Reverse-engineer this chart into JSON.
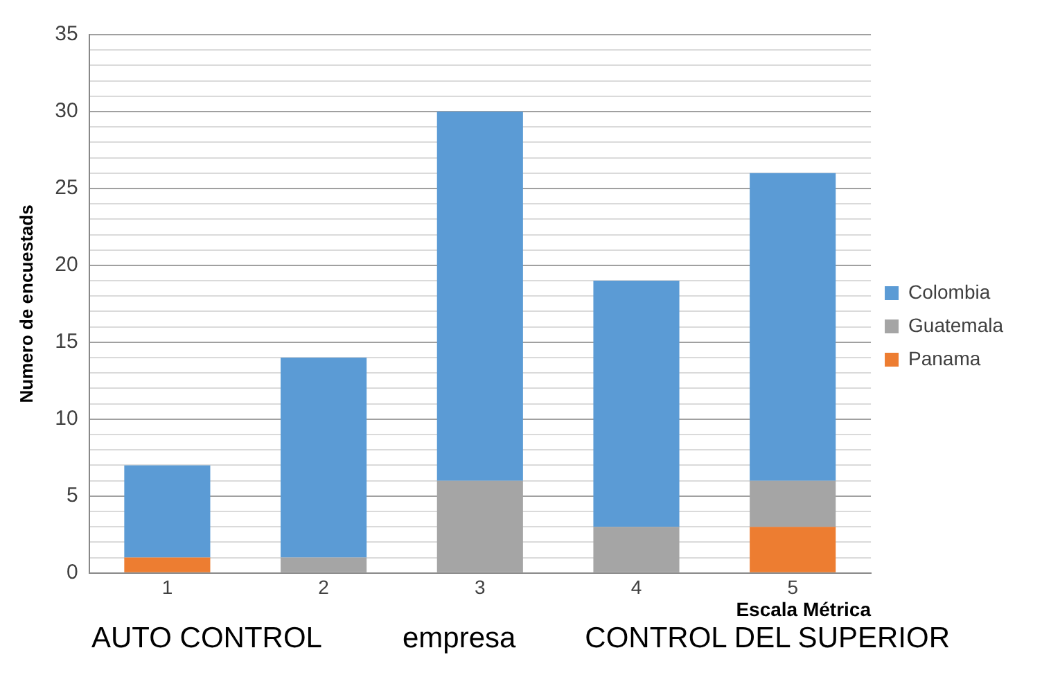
{
  "chart_data": {
    "type": "bar",
    "stacked": true,
    "categories": [
      "1",
      "2",
      "3",
      "4",
      "5"
    ],
    "series": [
      {
        "name": "Panama",
        "color": "#ed7d31",
        "values": [
          1,
          0,
          0,
          0,
          3
        ]
      },
      {
        "name": "Guatemala",
        "color": "#a5a5a5",
        "values": [
          0,
          1,
          6,
          3,
          3
        ]
      },
      {
        "name": "Colombia",
        "color": "#5b9bd5",
        "values": [
          6,
          13,
          24,
          16,
          20
        ]
      }
    ],
    "ylabel": "Numero de encuestads",
    "xlabel": "Escala Métrica",
    "ylim": [
      0,
      35
    ],
    "yticks": [
      0,
      {
        "value": 1,
        "label": null
      },
      {
        "value": 2,
        "label": null
      },
      {
        "value": 3,
        "label": null
      },
      {
        "value": 4,
        "label": null
      },
      5,
      {
        "value": 6,
        "label": null
      },
      {
        "value": 7,
        "label": null
      },
      {
        "value": 8,
        "label": null
      },
      {
        "value": 9,
        "label": null
      },
      10,
      {
        "value": 11,
        "label": null
      },
      {
        "value": 12,
        "label": null
      },
      {
        "value": 13,
        "label": null
      },
      {
        "value": 14,
        "label": null
      },
      15,
      {
        "value": 16,
        "label": null
      },
      {
        "value": 17,
        "label": null
      },
      {
        "value": 18,
        "label": null
      },
      {
        "value": 19,
        "label": null
      },
      20,
      {
        "value": 21,
        "label": null
      },
      {
        "value": 22,
        "label": null
      },
      {
        "value": 23,
        "label": null
      },
      {
        "value": 24,
        "label": null
      },
      25,
      {
        "value": 26,
        "label": null
      },
      {
        "value": 27,
        "label": null
      },
      {
        "value": 28,
        "label": null
      },
      {
        "value": 29,
        "label": null
      },
      30,
      {
        "value": 31,
        "label": null
      },
      {
        "value": 32,
        "label": null
      },
      {
        "value": 33,
        "label": null
      },
      {
        "value": 34,
        "label": null
      },
      35
    ],
    "grid": "y",
    "legend": "right",
    "annotations": [
      "AUTO CONTROL",
      "empresa",
      "CONTROL DEL SUPERIOR"
    ]
  }
}
